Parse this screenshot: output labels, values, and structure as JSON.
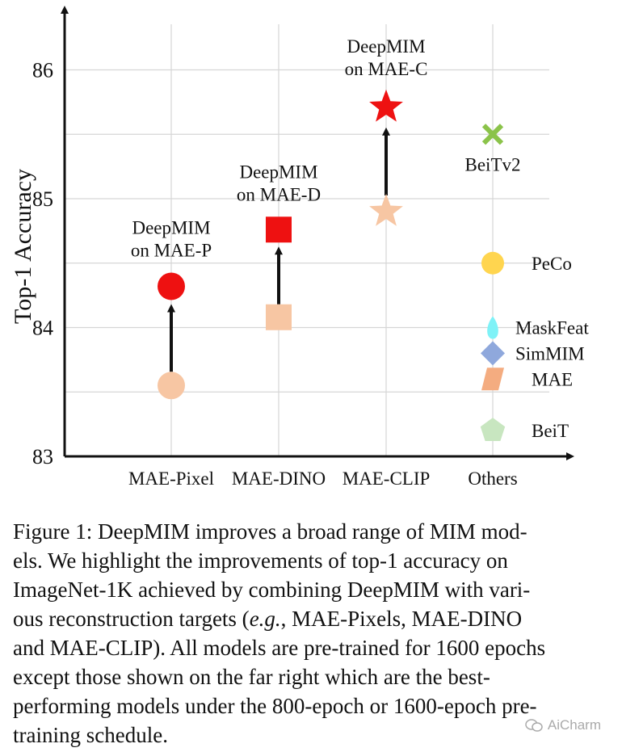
{
  "chart_data": {
    "type": "scatter",
    "ylabel": "Top-1 Accuracy",
    "xlabel": "",
    "ylim": [
      83,
      86.3
    ],
    "yticks": [
      "83",
      "84",
      "85",
      "86"
    ],
    "categories": [
      "MAE-Pixel",
      "MAE-DINO",
      "MAE-CLIP",
      "Others"
    ],
    "grid": "horizontal and vertical, light gray",
    "baselines": [
      {
        "category": "MAE-Pixel",
        "value": 83.55,
        "marker": "circle",
        "color": "#f7c6a3"
      },
      {
        "category": "MAE-DINO",
        "value": 84.08,
        "marker": "square",
        "color": "#f7c6a3"
      },
      {
        "category": "MAE-CLIP",
        "value": 84.9,
        "marker": "star",
        "color": "#f7c6a3"
      }
    ],
    "deepmim": [
      {
        "category": "MAE-Pixel",
        "value": 84.32,
        "marker": "circle",
        "color": "#ee1111",
        "label_line1": "DeepMIM",
        "label_line2": "on MAE-P"
      },
      {
        "category": "MAE-DINO",
        "value": 84.76,
        "marker": "square",
        "color": "#ee1111",
        "label_line1": "DeepMIM",
        "label_line2": "on MAE-D"
      },
      {
        "category": "MAE-CLIP",
        "value": 85.71,
        "marker": "star",
        "color": "#ee1111",
        "label_line1": "DeepMIM",
        "label_line2": "on MAE-C"
      }
    ],
    "others": [
      {
        "name": "BeiTv2",
        "value": 85.5,
        "marker": "x",
        "color": "#8bc34a"
      },
      {
        "name": "PeCo",
        "value": 84.5,
        "marker": "circle",
        "color": "#ffd54f"
      },
      {
        "name": "MaskFeat",
        "value": 84.0,
        "marker": "teardrop",
        "color": "#7ff2f7"
      },
      {
        "name": "SimMIM",
        "value": 83.8,
        "marker": "diamond",
        "color": "#8fa8dc"
      },
      {
        "name": "MAE",
        "value": 83.6,
        "marker": "parallelogram",
        "color": "#f4ac80"
      },
      {
        "name": "BeiT",
        "value": 83.2,
        "marker": "pentagon",
        "color": "#c8e6c0"
      }
    ]
  },
  "caption": {
    "lines": [
      "Figure 1: DeepMIM improves a broad range of MIM mod-",
      "els.  We highlight the improvements of top-1 accuracy on",
      "ImageNet-1K achieved by combining DeepMIM with vari-",
      "ous reconstruction targets (",
      "e.g.",
      ", MAE-Pixels, MAE-DINO",
      "and MAE-CLIP). All models are pre-trained for 1600 epochs",
      "except those shown on the far right which are the best-",
      "performing models under the 800-epoch or 1600-epoch pre-",
      "training schedule."
    ]
  },
  "watermark": {
    "text": "AiCharm"
  }
}
